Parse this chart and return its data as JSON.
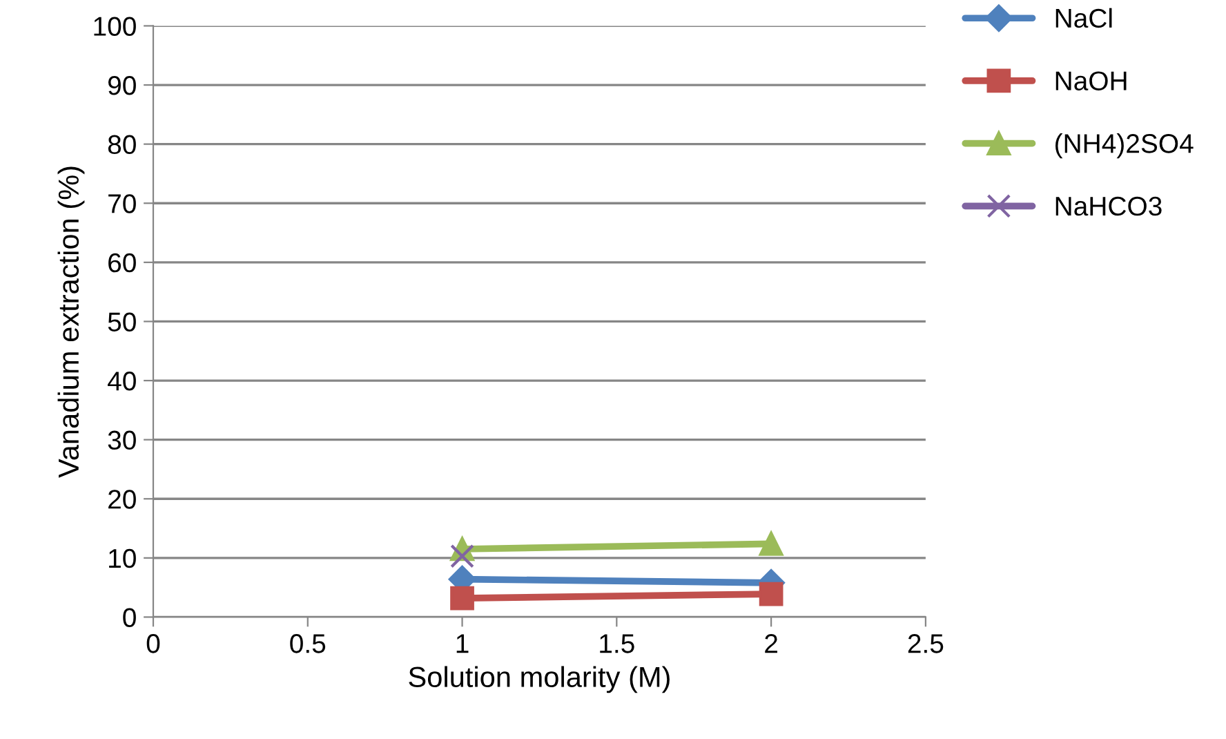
{
  "chart_data": {
    "type": "line",
    "xlabel": "Solution molarity (M)",
    "ylabel": "Vanadium extraction (%)",
    "x": [
      1,
      2
    ],
    "series": [
      {
        "name": "NaCl",
        "color": "#4f81bd",
        "marker": "diamond",
        "values": [
          6.4,
          5.8
        ]
      },
      {
        "name": "NaOH",
        "color": "#c0504d",
        "marker": "square",
        "values": [
          3.2,
          3.9
        ]
      },
      {
        "name": "(NH4)2SO4",
        "color": "#9bbb59",
        "marker": "triangle",
        "values": [
          11.5,
          12.4
        ]
      },
      {
        "name": "NaHCO3",
        "color": "#8064a2",
        "marker": "cross",
        "values": [
          10.3,
          null
        ]
      }
    ],
    "xlim": [
      0,
      2.5
    ],
    "xticks": [
      0,
      0.5,
      1,
      1.5,
      2,
      2.5
    ],
    "ylim": [
      0,
      100
    ],
    "yticks": [
      0,
      10,
      20,
      30,
      40,
      50,
      60,
      70,
      80,
      90,
      100
    ],
    "grid": "y",
    "legend": "right",
    "line_style": "solid"
  }
}
